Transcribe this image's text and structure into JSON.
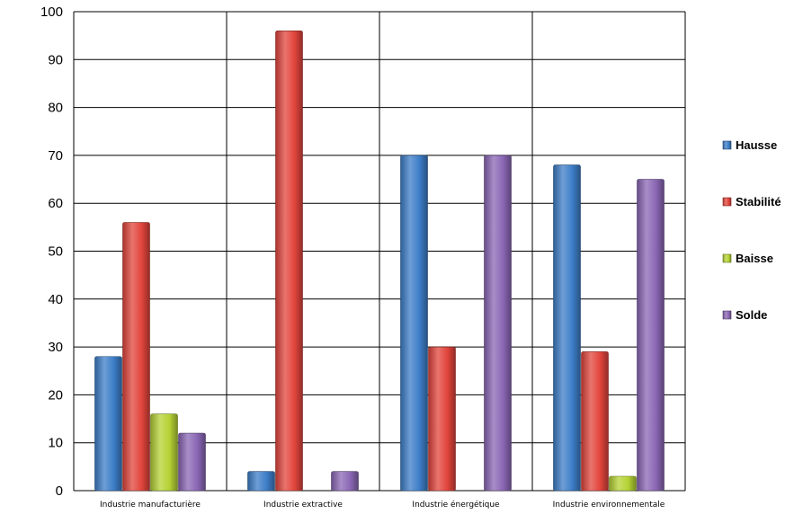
{
  "chart_data": {
    "type": "bar",
    "categories": [
      "Industrie manufacturière",
      "Industrie extractive",
      "Industrie énergétique",
      "Industrie environnementale"
    ],
    "series": [
      {
        "name": "Hausse",
        "color": "#3d7ec8",
        "values": [
          28,
          4,
          70,
          68
        ]
      },
      {
        "name": "Stabilité",
        "color": "#e2453c",
        "values": [
          56,
          96,
          30,
          29
        ]
      },
      {
        "name": "Baisse",
        "color": "#b5d334",
        "values": [
          16,
          0,
          0,
          3
        ]
      },
      {
        "name": "Solde",
        "color": "#8b67b5",
        "values": [
          12,
          4,
          70,
          65
        ]
      }
    ],
    "title": "",
    "xlabel": "",
    "ylabel": "",
    "ylim": [
      0,
      100
    ],
    "yticks": [
      "0",
      "10",
      "20",
      "30",
      "40",
      "50",
      "60",
      "70",
      "80",
      "90",
      "100"
    ],
    "grid": true,
    "legend_position": "right"
  }
}
